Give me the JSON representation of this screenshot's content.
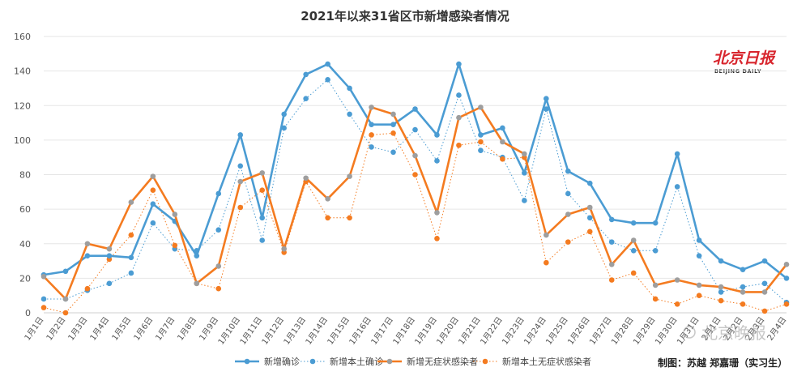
{
  "chart_data": {
    "type": "line",
    "title": "2021年以来31省区市新增感染者情况",
    "categories": [
      "1月1日",
      "1月2日",
      "1月3日",
      "1月4日",
      "1月5日",
      "1月6日",
      "1月7日",
      "1月8日",
      "1月9日",
      "1月10日",
      "1月11日",
      "1月12日",
      "1月13日",
      "1月14日",
      "1月15日",
      "1月16日",
      "1月17日",
      "1月18日",
      "1月19日",
      "1月20日",
      "1月21日",
      "1月22日",
      "1月23日",
      "1月24日",
      "1月25日",
      "1月26日",
      "1月27日",
      "1月28日",
      "1月29日",
      "1月30日",
      "1月31日",
      "2月1日",
      "2月2日",
      "2月3日",
      "2月4日"
    ],
    "ylim": [
      0,
      160
    ],
    "yticks": [
      0,
      20,
      40,
      60,
      80,
      100,
      120,
      140,
      160
    ],
    "grid": true,
    "legend_position": "bottom",
    "series": [
      {
        "name": "新增确诊",
        "color": "#4b9cd3",
        "style": "solid",
        "values": [
          22,
          24,
          33,
          33,
          32,
          63,
          53,
          33,
          69,
          103,
          55,
          115,
          138,
          144,
          130,
          109,
          109,
          118,
          103,
          144,
          103,
          107,
          81,
          124,
          82,
          75,
          54,
          52,
          52,
          92,
          42,
          30,
          25,
          30,
          20
        ]
      },
      {
        "name": "新增本土确诊",
        "color": "#4b9cd3",
        "style": "dotted",
        "values": [
          8,
          8,
          13,
          17,
          23,
          52,
          37,
          36,
          48,
          85,
          42,
          107,
          124,
          135,
          115,
          96,
          93,
          106,
          88,
          126,
          94,
          90,
          65,
          118,
          69,
          55,
          41,
          36,
          36,
          73,
          33,
          12,
          15,
          17,
          6
        ]
      },
      {
        "name": "新增无症状感染者",
        "color": "#f47b20",
        "style": "solid",
        "values": [
          21,
          8,
          40,
          37,
          64,
          79,
          57,
          17,
          27,
          76,
          81,
          37,
          78,
          66,
          79,
          119,
          115,
          91,
          58,
          113,
          119,
          99,
          92,
          45,
          57,
          61,
          28,
          42,
          16,
          19,
          16,
          15,
          12,
          12,
          28
        ]
      },
      {
        "name": "新增本土无症状感染者",
        "color": "#f47b20",
        "style": "dotted",
        "values": [
          3,
          0,
          14,
          31,
          45,
          71,
          39,
          17,
          14,
          61,
          71,
          35,
          76,
          55,
          55,
          103,
          104,
          80,
          43,
          97,
          99,
          89,
          90,
          29,
          41,
          47,
          19,
          23,
          8,
          5,
          10,
          7,
          5,
          1,
          5
        ]
      }
    ],
    "marker_color_solid_orange": "#9e9e9e"
  },
  "credit": "制图：苏越  郑嘉珊（实习生）",
  "logo": {
    "text": "北京日报",
    "subtitle": "BEIJING DAILY"
  },
  "watermark": "北京晚报"
}
